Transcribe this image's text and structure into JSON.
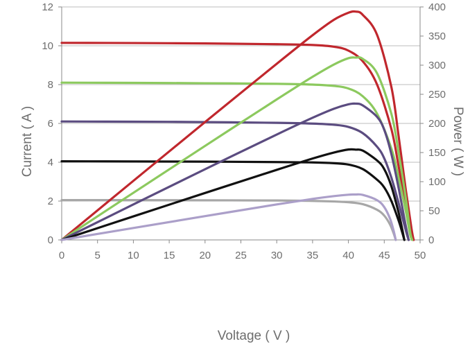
{
  "chart_data": {
    "type": "line",
    "xlabel": "Voltage ( V )",
    "ylabel_left": "Current ( A )",
    "ylabel_right": "Power ( W )",
    "xlim": [
      0,
      50
    ],
    "ylim_left": [
      0,
      12
    ],
    "ylim_right": [
      0,
      400
    ],
    "x_ticks": [
      "0",
      "5",
      "10",
      "15",
      "20",
      "25",
      "30",
      "35",
      "40",
      "45",
      "50"
    ],
    "y_left_ticks": [
      "0",
      "2",
      "4",
      "6",
      "8",
      "10",
      "12"
    ],
    "y_right_ticks": [
      "0",
      "50",
      "100",
      "150",
      "200",
      "250",
      "300",
      "350",
      "400"
    ],
    "grid": "horizontal",
    "legend": "none",
    "series": [
      {
        "kind": "current",
        "color": "#c0272d",
        "points": [
          [
            0,
            10.15
          ],
          [
            10,
            10.14
          ],
          [
            20,
            10.12
          ],
          [
            30,
            10.08
          ],
          [
            35,
            10.04
          ],
          [
            38,
            9.95
          ],
          [
            40,
            9.75
          ],
          [
            42,
            9.2
          ],
          [
            44,
            8.0
          ],
          [
            46,
            5.7
          ],
          [
            47,
            3.8
          ],
          [
            48,
            1.8
          ],
          [
            48.8,
            0.4
          ],
          [
            49.1,
            0
          ]
        ]
      },
      {
        "kind": "current",
        "color": "#8cc95e",
        "points": [
          [
            0,
            8.1
          ],
          [
            10,
            8.09
          ],
          [
            20,
            8.07
          ],
          [
            30,
            8.04
          ],
          [
            35,
            8.0
          ],
          [
            38,
            7.93
          ],
          [
            40,
            7.8
          ],
          [
            42,
            7.4
          ],
          [
            44,
            6.5
          ],
          [
            46,
            4.7
          ],
          [
            47,
            3.2
          ],
          [
            48,
            1.5
          ],
          [
            48.6,
            0.3
          ],
          [
            48.9,
            0
          ]
        ]
      },
      {
        "kind": "current",
        "color": "#5b4c80",
        "points": [
          [
            0,
            6.1
          ],
          [
            10,
            6.09
          ],
          [
            20,
            6.07
          ],
          [
            30,
            6.03
          ],
          [
            35,
            5.99
          ],
          [
            38,
            5.93
          ],
          [
            40,
            5.82
          ],
          [
            42,
            5.5
          ],
          [
            44,
            4.8
          ],
          [
            45,
            4.2
          ],
          [
            46,
            3.2
          ],
          [
            47,
            1.9
          ],
          [
            48,
            0.5
          ],
          [
            48.4,
            0
          ]
        ]
      },
      {
        "kind": "current",
        "color": "#111111",
        "points": [
          [
            0,
            4.05
          ],
          [
            10,
            4.04
          ],
          [
            20,
            4.03
          ],
          [
            30,
            4.01
          ],
          [
            35,
            3.99
          ],
          [
            38,
            3.95
          ],
          [
            40,
            3.88
          ],
          [
            42,
            3.65
          ],
          [
            44,
            3.1
          ],
          [
            45,
            2.7
          ],
          [
            46,
            2.0
          ],
          [
            47,
            1.0
          ],
          [
            47.5,
            0.4
          ],
          [
            47.8,
            0
          ]
        ]
      },
      {
        "kind": "current",
        "color": "#a7a7a7",
        "points": [
          [
            0,
            2.05
          ],
          [
            10,
            2.05
          ],
          [
            20,
            2.04
          ],
          [
            30,
            2.03
          ],
          [
            35,
            2.01
          ],
          [
            38,
            1.98
          ],
          [
            40,
            1.94
          ],
          [
            42,
            1.84
          ],
          [
            44,
            1.55
          ],
          [
            45,
            1.25
          ],
          [
            45.8,
            0.8
          ],
          [
            46.3,
            0.35
          ],
          [
            46.6,
            0
          ]
        ]
      },
      {
        "kind": "power",
        "color": "#c0272d",
        "points": [
          [
            0,
            0
          ],
          [
            10,
            101.4
          ],
          [
            20,
            202.4
          ],
          [
            30,
            302.4
          ],
          [
            35,
            351.4
          ],
          [
            38,
            378.1
          ],
          [
            40,
            390
          ],
          [
            41,
            392
          ],
          [
            42,
            386.4
          ],
          [
            44,
            352
          ],
          [
            46,
            262.2
          ],
          [
            47,
            178.6
          ],
          [
            48,
            86.4
          ],
          [
            48.8,
            19.5
          ],
          [
            49.1,
            0
          ]
        ]
      },
      {
        "kind": "power",
        "color": "#8cc95e",
        "points": [
          [
            0,
            0
          ],
          [
            10,
            80.9
          ],
          [
            20,
            161.4
          ],
          [
            30,
            241.2
          ],
          [
            35,
            280
          ],
          [
            38,
            301.3
          ],
          [
            40,
            312
          ],
          [
            41,
            313
          ],
          [
            42,
            310.8
          ],
          [
            44,
            286
          ],
          [
            46,
            216.2
          ],
          [
            47,
            150.4
          ],
          [
            48,
            72
          ],
          [
            48.6,
            14.6
          ],
          [
            48.9,
            0
          ]
        ]
      },
      {
        "kind": "power",
        "color": "#5b4c80",
        "points": [
          [
            0,
            0
          ],
          [
            10,
            60.9
          ],
          [
            20,
            121.4
          ],
          [
            30,
            180.9
          ],
          [
            35,
            209.7
          ],
          [
            38,
            225.3
          ],
          [
            40,
            232.8
          ],
          [
            41,
            234
          ],
          [
            42,
            231
          ],
          [
            44,
            211.2
          ],
          [
            45,
            189
          ],
          [
            46,
            147.2
          ],
          [
            47,
            89.3
          ],
          [
            48,
            24
          ],
          [
            48.4,
            0
          ]
        ]
      },
      {
        "kind": "power",
        "color": "#111111",
        "points": [
          [
            0,
            0
          ],
          [
            10,
            40.4
          ],
          [
            20,
            80.6
          ],
          [
            30,
            120.3
          ],
          [
            35,
            139.7
          ],
          [
            38,
            150.1
          ],
          [
            40,
            155.2
          ],
          [
            41,
            155
          ],
          [
            42,
            153.3
          ],
          [
            44,
            136.4
          ],
          [
            45,
            121.5
          ],
          [
            46,
            92
          ],
          [
            47,
            47
          ],
          [
            47.5,
            19
          ],
          [
            47.8,
            0
          ]
        ]
      },
      {
        "kind": "power",
        "color": "#ab9fc9",
        "points": [
          [
            0,
            0
          ],
          [
            10,
            20.5
          ],
          [
            20,
            40.8
          ],
          [
            30,
            60.9
          ],
          [
            35,
            70.4
          ],
          [
            38,
            75.2
          ],
          [
            40,
            77.6
          ],
          [
            41,
            78
          ],
          [
            42,
            77.3
          ],
          [
            44,
            68.2
          ],
          [
            45,
            56.3
          ],
          [
            45.8,
            36.6
          ],
          [
            46.3,
            16.2
          ],
          [
            46.6,
            0
          ]
        ]
      }
    ]
  }
}
